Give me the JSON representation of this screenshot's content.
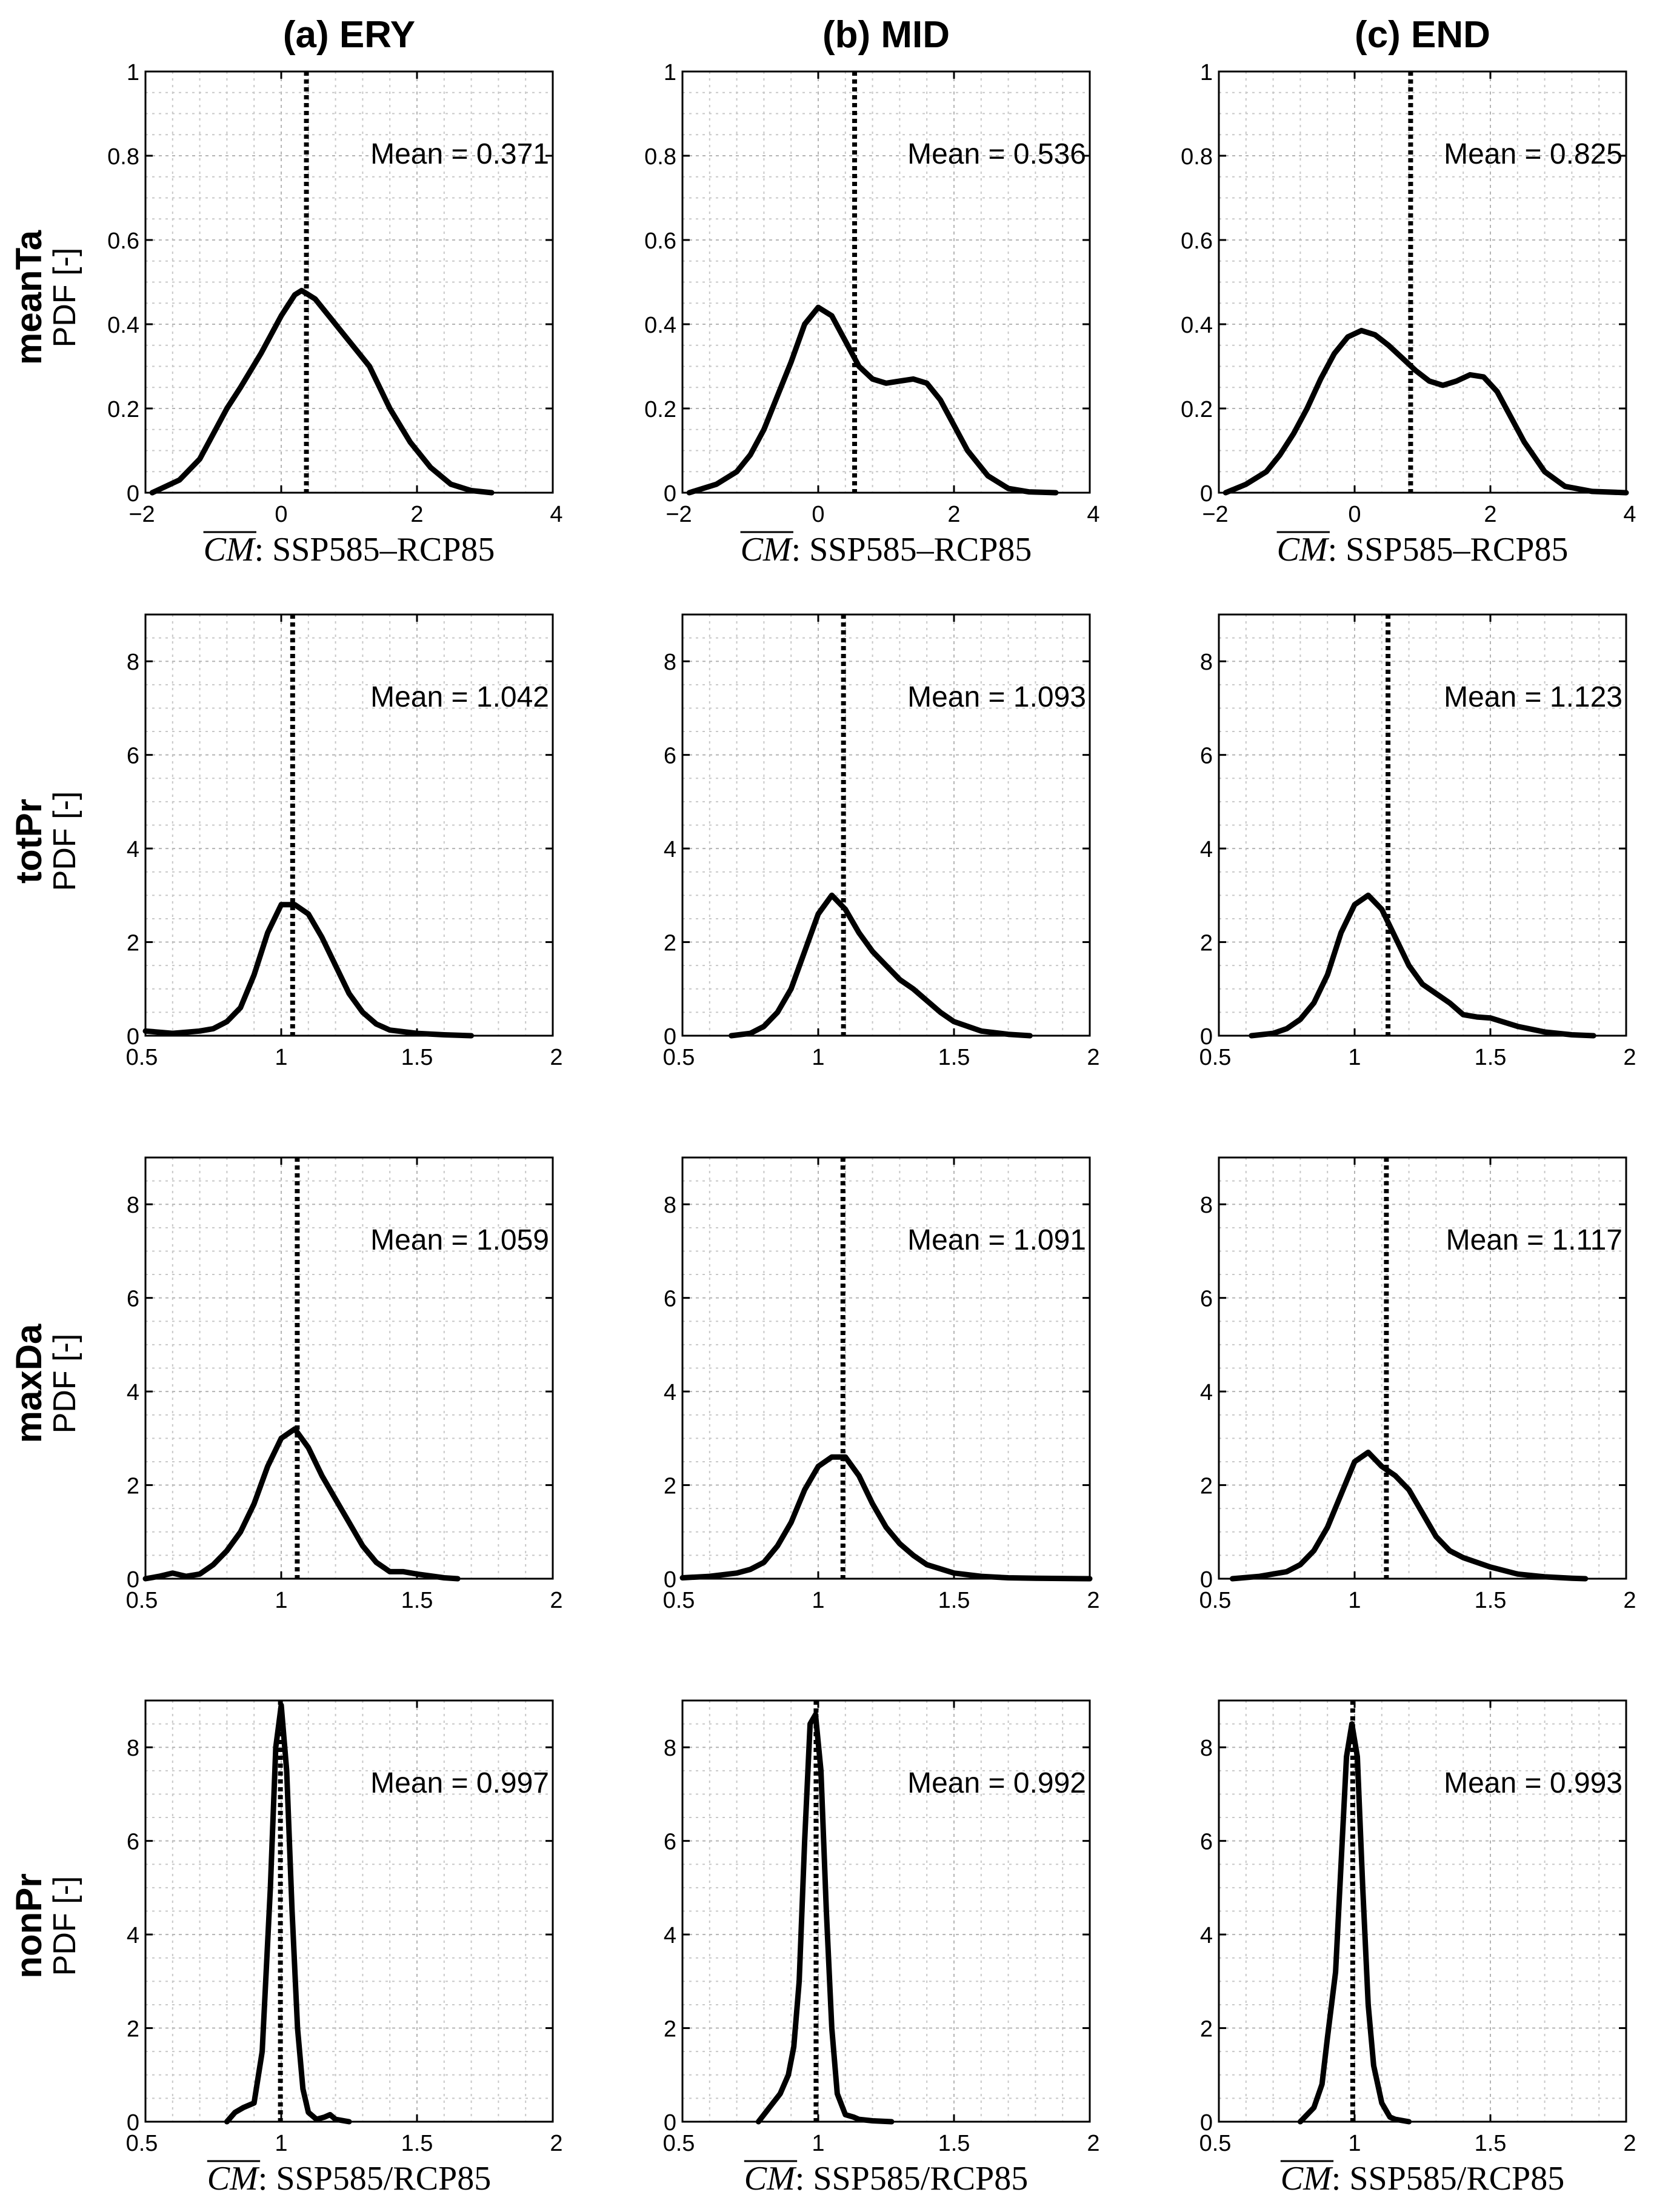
{
  "figure": {
    "column_titles": [
      "(a) ERY",
      "(b) MID",
      "(c) END"
    ],
    "row_labels": [
      "meanTa",
      "totPr",
      "maxDa",
      "nonPr"
    ],
    "ylabel": "PDF [-]",
    "xlabel_diff": {
      "var": "CM",
      "text": ": SSP585–RCP85"
    },
    "xlabel_ratio": {
      "var": "CM",
      "text": ": SSP585/RCP85"
    }
  },
  "chart_data": [
    {
      "id": "meanTa-ERY",
      "type": "line",
      "row": "meanTa",
      "period": "ERY",
      "xlim": [
        -2,
        4
      ],
      "ylim": [
        0,
        1
      ],
      "xticks": [
        -2,
        0,
        2,
        4
      ],
      "xticklabels": [
        "−2",
        "0",
        "2",
        "4"
      ],
      "yticks": [
        0,
        0.2,
        0.4,
        0.6,
        0.8,
        1
      ],
      "yticklabels": [
        "0",
        "0.2",
        "0.4",
        "0.6",
        "0.8",
        "1"
      ],
      "mean": 0.371,
      "mean_label": "Mean = 0.371",
      "xlabel": "diff",
      "x": [
        -1.9,
        -1.5,
        -1.2,
        -1.0,
        -0.8,
        -0.6,
        -0.3,
        0.0,
        0.2,
        0.3,
        0.5,
        0.7,
        0.9,
        1.1,
        1.3,
        1.6,
        1.9,
        2.2,
        2.5,
        2.8,
        3.1
      ],
      "y": [
        0.0,
        0.03,
        0.08,
        0.14,
        0.2,
        0.25,
        0.33,
        0.42,
        0.47,
        0.48,
        0.46,
        0.42,
        0.38,
        0.34,
        0.3,
        0.2,
        0.12,
        0.06,
        0.02,
        0.005,
        0.0
      ]
    },
    {
      "id": "meanTa-MID",
      "type": "line",
      "row": "meanTa",
      "period": "MID",
      "xlim": [
        -2,
        4
      ],
      "ylim": [
        0,
        1
      ],
      "xticks": [
        -2,
        0,
        2,
        4
      ],
      "xticklabels": [
        "−2",
        "0",
        "2",
        "4"
      ],
      "yticks": [
        0,
        0.2,
        0.4,
        0.6,
        0.8,
        1
      ],
      "yticklabels": [
        "0",
        "0.2",
        "0.4",
        "0.6",
        "0.8",
        "1"
      ],
      "mean": 0.536,
      "mean_label": "Mean = 0.536",
      "xlabel": "diff",
      "x": [
        -1.9,
        -1.5,
        -1.2,
        -1.0,
        -0.8,
        -0.6,
        -0.4,
        -0.2,
        0.0,
        0.2,
        0.4,
        0.6,
        0.8,
        1.0,
        1.2,
        1.4,
        1.6,
        1.8,
        2.0,
        2.2,
        2.5,
        2.8,
        3.1,
        3.5
      ],
      "y": [
        0.0,
        0.02,
        0.05,
        0.09,
        0.15,
        0.23,
        0.31,
        0.4,
        0.44,
        0.42,
        0.36,
        0.3,
        0.27,
        0.26,
        0.265,
        0.27,
        0.26,
        0.22,
        0.16,
        0.1,
        0.04,
        0.01,
        0.002,
        0.0
      ]
    },
    {
      "id": "meanTa-END",
      "type": "line",
      "row": "meanTa",
      "period": "END",
      "xlim": [
        -2,
        4
      ],
      "ylim": [
        0,
        1
      ],
      "xticks": [
        -2,
        0,
        2,
        4
      ],
      "xticklabels": [
        "−2",
        "0",
        "2",
        "4"
      ],
      "yticks": [
        0,
        0.2,
        0.4,
        0.6,
        0.8,
        1
      ],
      "yticklabels": [
        "0",
        "0.2",
        "0.4",
        "0.6",
        "0.8",
        "1"
      ],
      "mean": 0.825,
      "mean_label": "Mean = 0.825",
      "xlabel": "diff",
      "x": [
        -1.9,
        -1.6,
        -1.3,
        -1.1,
        -0.9,
        -0.7,
        -0.5,
        -0.3,
        -0.1,
        0.1,
        0.3,
        0.5,
        0.7,
        0.9,
        1.1,
        1.3,
        1.5,
        1.7,
        1.9,
        2.1,
        2.3,
        2.5,
        2.8,
        3.1,
        3.5,
        4.0
      ],
      "y": [
        0.0,
        0.02,
        0.05,
        0.09,
        0.14,
        0.2,
        0.27,
        0.33,
        0.37,
        0.385,
        0.375,
        0.35,
        0.32,
        0.29,
        0.265,
        0.255,
        0.265,
        0.28,
        0.275,
        0.24,
        0.18,
        0.12,
        0.05,
        0.015,
        0.003,
        0.0
      ]
    },
    {
      "id": "totPr-ERY",
      "type": "line",
      "row": "totPr",
      "period": "ERY",
      "xlim": [
        0.5,
        2
      ],
      "ylim": [
        0,
        9
      ],
      "xticks": [
        0.5,
        1,
        1.5,
        2
      ],
      "xticklabels": [
        "0.5",
        "1",
        "1.5",
        "2"
      ],
      "yticks": [
        0,
        2,
        4,
        6,
        8
      ],
      "yticklabels": [
        "0",
        "2",
        "4",
        "6",
        "8"
      ],
      "mean": 1.042,
      "mean_label": "Mean = 1.042",
      "xlabel": "none",
      "x": [
        0.5,
        0.6,
        0.7,
        0.75,
        0.8,
        0.85,
        0.9,
        0.95,
        1.0,
        1.05,
        1.1,
        1.15,
        1.2,
        1.25,
        1.3,
        1.35,
        1.4,
        1.5,
        1.6,
        1.7
      ],
      "y": [
        0.1,
        0.05,
        0.1,
        0.15,
        0.3,
        0.6,
        1.3,
        2.2,
        2.8,
        2.8,
        2.6,
        2.1,
        1.5,
        0.9,
        0.5,
        0.25,
        0.12,
        0.05,
        0.02,
        0.0
      ]
    },
    {
      "id": "totPr-MID",
      "type": "line",
      "row": "totPr",
      "period": "MID",
      "xlim": [
        0.5,
        2
      ],
      "ylim": [
        0,
        9
      ],
      "xticks": [
        0.5,
        1,
        1.5,
        2
      ],
      "xticklabels": [
        "0.5",
        "1",
        "1.5",
        "2"
      ],
      "yticks": [
        0,
        2,
        4,
        6,
        8
      ],
      "yticklabels": [
        "0",
        "2",
        "4",
        "6",
        "8"
      ],
      "mean": 1.093,
      "mean_label": "Mean = 1.093",
      "xlabel": "none",
      "x": [
        0.68,
        0.75,
        0.8,
        0.85,
        0.9,
        0.95,
        1.0,
        1.05,
        1.1,
        1.15,
        1.2,
        1.25,
        1.3,
        1.35,
        1.4,
        1.45,
        1.5,
        1.6,
        1.7,
        1.78
      ],
      "y": [
        0.0,
        0.05,
        0.2,
        0.5,
        1.0,
        1.8,
        2.6,
        3.0,
        2.7,
        2.2,
        1.8,
        1.5,
        1.2,
        1.0,
        0.75,
        0.5,
        0.3,
        0.1,
        0.03,
        0.0
      ]
    },
    {
      "id": "totPr-END",
      "type": "line",
      "row": "totPr",
      "period": "END",
      "xlim": [
        0.5,
        2
      ],
      "ylim": [
        0,
        9
      ],
      "xticks": [
        0.5,
        1,
        1.5,
        2
      ],
      "xticklabels": [
        "0.5",
        "1",
        "1.5",
        "2"
      ],
      "yticks": [
        0,
        2,
        4,
        6,
        8
      ],
      "yticklabels": [
        "0",
        "2",
        "4",
        "6",
        "8"
      ],
      "mean": 1.123,
      "mean_label": "Mean = 1.123",
      "xlabel": "none",
      "x": [
        0.62,
        0.7,
        0.75,
        0.8,
        0.85,
        0.9,
        0.95,
        1.0,
        1.05,
        1.1,
        1.15,
        1.2,
        1.25,
        1.3,
        1.35,
        1.4,
        1.45,
        1.5,
        1.6,
        1.7,
        1.8,
        1.88
      ],
      "y": [
        0.0,
        0.05,
        0.15,
        0.35,
        0.7,
        1.3,
        2.2,
        2.8,
        3.0,
        2.7,
        2.1,
        1.5,
        1.1,
        0.9,
        0.7,
        0.45,
        0.4,
        0.38,
        0.2,
        0.08,
        0.02,
        0.0
      ]
    },
    {
      "id": "maxDa-ERY",
      "type": "line",
      "row": "maxDa",
      "period": "ERY",
      "xlim": [
        0.5,
        2
      ],
      "ylim": [
        0,
        9
      ],
      "xticks": [
        0.5,
        1,
        1.5,
        2
      ],
      "xticklabels": [
        "0.5",
        "1",
        "1.5",
        "2"
      ],
      "yticks": [
        0,
        2,
        4,
        6,
        8
      ],
      "yticklabels": [
        "0",
        "2",
        "4",
        "6",
        "8"
      ],
      "mean": 1.059,
      "mean_label": "Mean = 1.059",
      "xlabel": "none",
      "x": [
        0.5,
        0.55,
        0.6,
        0.65,
        0.7,
        0.75,
        0.8,
        0.85,
        0.9,
        0.95,
        1.0,
        1.05,
        1.1,
        1.15,
        1.2,
        1.25,
        1.3,
        1.35,
        1.4,
        1.45,
        1.5,
        1.6,
        1.65
      ],
      "y": [
        0.0,
        0.05,
        0.12,
        0.05,
        0.1,
        0.3,
        0.6,
        1.0,
        1.6,
        2.4,
        3.0,
        3.2,
        2.8,
        2.2,
        1.7,
        1.2,
        0.7,
        0.35,
        0.15,
        0.15,
        0.1,
        0.02,
        0.0
      ]
    },
    {
      "id": "maxDa-MID",
      "type": "line",
      "row": "maxDa",
      "period": "MID",
      "xlim": [
        0.5,
        2
      ],
      "ylim": [
        0,
        9
      ],
      "xticks": [
        0.5,
        1,
        1.5,
        2
      ],
      "xticklabels": [
        "0.5",
        "1",
        "1.5",
        "2"
      ],
      "yticks": [
        0,
        2,
        4,
        6,
        8
      ],
      "yticklabels": [
        "0",
        "2",
        "4",
        "6",
        "8"
      ],
      "mean": 1.091,
      "mean_label": "Mean = 1.091",
      "xlabel": "none",
      "x": [
        0.5,
        0.6,
        0.7,
        0.75,
        0.8,
        0.85,
        0.9,
        0.95,
        1.0,
        1.05,
        1.1,
        1.15,
        1.2,
        1.25,
        1.3,
        1.35,
        1.4,
        1.5,
        1.6,
        1.7,
        1.8,
        2.0
      ],
      "y": [
        0.02,
        0.05,
        0.12,
        0.2,
        0.35,
        0.7,
        1.2,
        1.9,
        2.4,
        2.6,
        2.6,
        2.2,
        1.6,
        1.1,
        0.75,
        0.5,
        0.3,
        0.12,
        0.05,
        0.02,
        0.01,
        0.0
      ]
    },
    {
      "id": "maxDa-END",
      "type": "line",
      "row": "maxDa",
      "period": "END",
      "xlim": [
        0.5,
        2
      ],
      "ylim": [
        0,
        9
      ],
      "xticks": [
        0.5,
        1,
        1.5,
        2
      ],
      "xticklabels": [
        "0.5",
        "1",
        "1.5",
        "2"
      ],
      "yticks": [
        0,
        2,
        4,
        6,
        8
      ],
      "yticklabels": [
        "0",
        "2",
        "4",
        "6",
        "8"
      ],
      "mean": 1.117,
      "mean_label": "Mean = 1.117",
      "xlabel": "none",
      "x": [
        0.55,
        0.65,
        0.75,
        0.8,
        0.85,
        0.9,
        0.95,
        1.0,
        1.05,
        1.1,
        1.15,
        1.2,
        1.25,
        1.3,
        1.35,
        1.4,
        1.45,
        1.5,
        1.6,
        1.7,
        1.8,
        1.85
      ],
      "y": [
        0.0,
        0.05,
        0.15,
        0.3,
        0.6,
        1.1,
        1.8,
        2.5,
        2.7,
        2.4,
        2.2,
        1.9,
        1.4,
        0.9,
        0.6,
        0.45,
        0.35,
        0.25,
        0.1,
        0.04,
        0.01,
        0.0
      ]
    },
    {
      "id": "nonPr-ERY",
      "type": "line",
      "row": "nonPr",
      "period": "ERY",
      "xlim": [
        0.5,
        2
      ],
      "ylim": [
        0,
        9
      ],
      "xticks": [
        0.5,
        1,
        1.5,
        2
      ],
      "xticklabels": [
        "0.5",
        "1",
        "1.5",
        "2"
      ],
      "yticks": [
        0,
        2,
        4,
        6,
        8
      ],
      "yticklabels": [
        "0",
        "2",
        "4",
        "6",
        "8"
      ],
      "mean": 0.997,
      "mean_label": "Mean = 0.997",
      "xlabel": "ratio",
      "x": [
        0.8,
        0.83,
        0.86,
        0.9,
        0.93,
        0.96,
        0.98,
        1.0,
        1.02,
        1.04,
        1.06,
        1.08,
        1.1,
        1.13,
        1.16,
        1.18,
        1.2,
        1.25
      ],
      "y": [
        0.0,
        0.2,
        0.3,
        0.4,
        1.5,
        5.0,
        8.0,
        8.9,
        7.5,
        4.5,
        2.0,
        0.7,
        0.2,
        0.05,
        0.1,
        0.15,
        0.05,
        0.0
      ]
    },
    {
      "id": "nonPr-MID",
      "type": "line",
      "row": "nonPr",
      "period": "MID",
      "xlim": [
        0.5,
        2
      ],
      "ylim": [
        0,
        9
      ],
      "xticks": [
        0.5,
        1,
        1.5,
        2
      ],
      "xticklabels": [
        "0.5",
        "1",
        "1.5",
        "2"
      ],
      "yticks": [
        0,
        2,
        4,
        6,
        8
      ],
      "yticklabels": [
        "0",
        "2",
        "4",
        "6",
        "8"
      ],
      "mean": 0.992,
      "mean_label": "Mean = 0.992",
      "xlabel": "ratio",
      "x": [
        0.78,
        0.82,
        0.86,
        0.89,
        0.91,
        0.93,
        0.95,
        0.97,
        0.99,
        1.01,
        1.03,
        1.05,
        1.07,
        1.1,
        1.13,
        1.15,
        1.2,
        1.27
      ],
      "y": [
        0.0,
        0.3,
        0.6,
        1.0,
        1.6,
        3.0,
        6.0,
        8.5,
        8.7,
        7.5,
        4.5,
        2.0,
        0.6,
        0.15,
        0.1,
        0.05,
        0.02,
        0.0
      ]
    },
    {
      "id": "nonPr-END",
      "type": "line",
      "row": "nonPr",
      "period": "END",
      "xlim": [
        0.5,
        2
      ],
      "ylim": [
        0,
        9
      ],
      "xticks": [
        0.5,
        1,
        1.5,
        2
      ],
      "xticklabels": [
        "0.5",
        "1",
        "1.5",
        "2"
      ],
      "yticks": [
        0,
        2,
        4,
        6,
        8
      ],
      "yticklabels": [
        "0",
        "2",
        "4",
        "6",
        "8"
      ],
      "mean": 0.993,
      "mean_label": "Mean = 0.993",
      "xlabel": "ratio",
      "x": [
        0.8,
        0.85,
        0.88,
        0.9,
        0.93,
        0.95,
        0.97,
        0.99,
        1.01,
        1.03,
        1.05,
        1.07,
        1.1,
        1.13,
        1.15,
        1.2
      ],
      "y": [
        0.0,
        0.3,
        0.8,
        1.8,
        3.2,
        5.5,
        7.8,
        8.5,
        7.8,
        5.0,
        2.5,
        1.2,
        0.4,
        0.1,
        0.05,
        0.0
      ]
    }
  ]
}
